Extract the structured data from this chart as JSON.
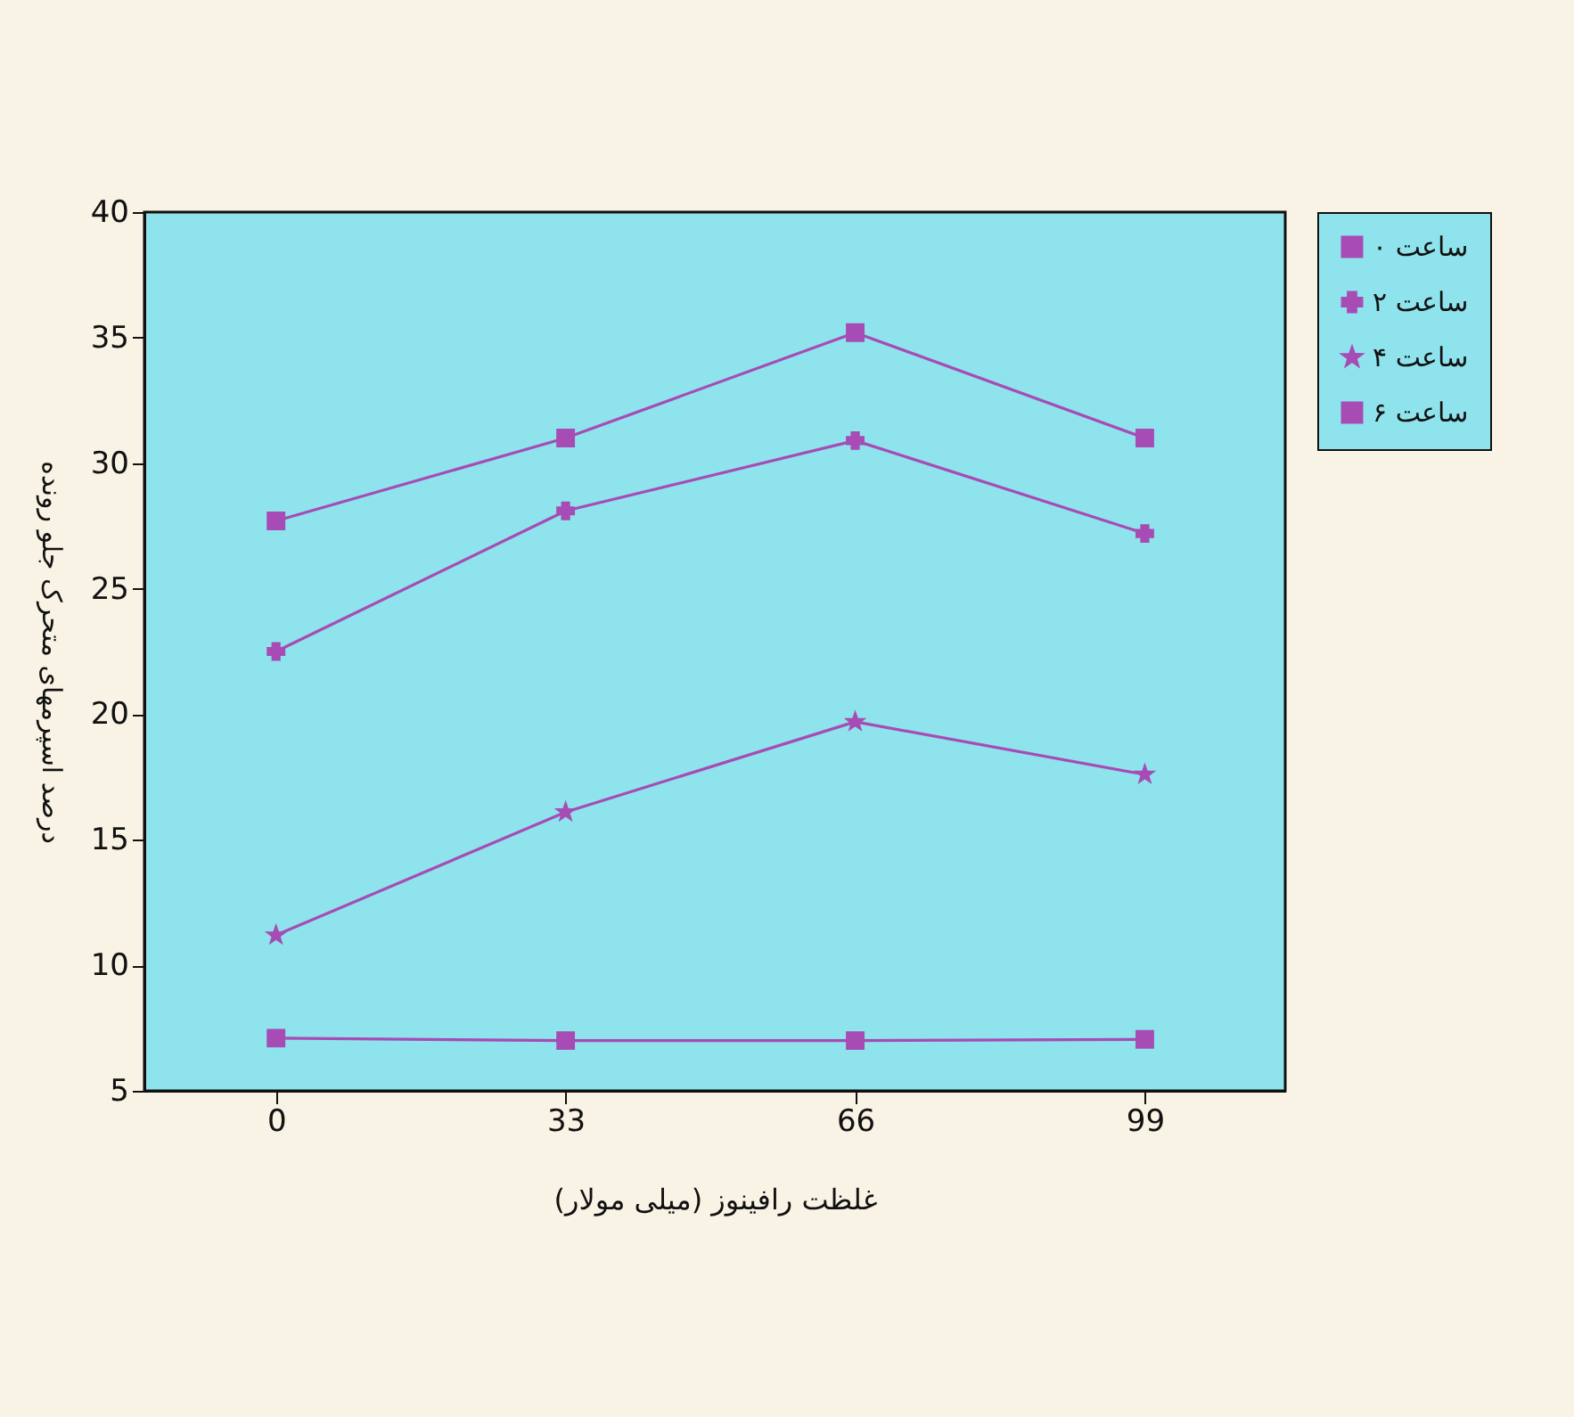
{
  "chart_data": {
    "type": "line",
    "xlabel": "غلظت رافینوز (میلی مولار)",
    "ylabel": "درصد اسپرمهای متحرک جلو رونده",
    "x": [
      0,
      33,
      66,
      99
    ],
    "xlim": [
      -15,
      115
    ],
    "xticks": [
      0,
      33,
      66,
      99
    ],
    "ylim": [
      5,
      40
    ],
    "yticks": [
      5,
      10,
      15,
      20,
      25,
      30,
      35,
      40
    ],
    "grid": false,
    "legend": "top right",
    "line_style": "solid",
    "series": [
      {
        "name": "۰ ساعت",
        "color": "#a64cb4",
        "marker": "square",
        "values": [
          27.7,
          31.0,
          35.2,
          31.0
        ]
      },
      {
        "name": "۲ ساعت",
        "color": "#a64cb4",
        "marker": "cross",
        "values": [
          22.5,
          28.1,
          30.9,
          27.2
        ]
      },
      {
        "name": "۴ ساعت",
        "color": "#a64cb4",
        "marker": "star",
        "values": [
          11.2,
          16.1,
          19.7,
          17.6
        ]
      },
      {
        "name": "۶ ساعت",
        "color": "#a64cb4",
        "marker": "square",
        "values": [
          7.1,
          7.0,
          7.0,
          7.05
        ]
      }
    ]
  }
}
